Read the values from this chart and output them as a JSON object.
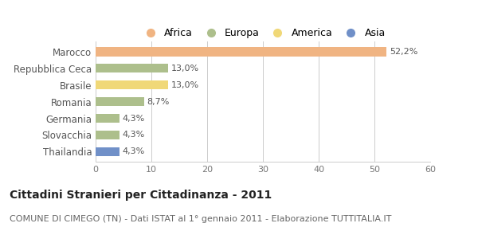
{
  "categories": [
    "Marocco",
    "Repubblica Ceca",
    "Brasile",
    "Romania",
    "Germania",
    "Slovacchia",
    "Thailandia"
  ],
  "values": [
    52.2,
    13.0,
    13.0,
    8.7,
    4.3,
    4.3,
    4.3
  ],
  "labels": [
    "52,2%",
    "13,0%",
    "13,0%",
    "8,7%",
    "4,3%",
    "4,3%",
    "4,3%"
  ],
  "colors": [
    "#F0B482",
    "#ADBF8C",
    "#F0D878",
    "#ADBF8C",
    "#ADBF8C",
    "#ADBF8C",
    "#7090C8"
  ],
  "legend": [
    {
      "label": "Africa",
      "color": "#F0B482"
    },
    {
      "label": "Europa",
      "color": "#ADBF8C"
    },
    {
      "label": "America",
      "color": "#F0D878"
    },
    {
      "label": "Asia",
      "color": "#7090C8"
    }
  ],
  "xlim": [
    0,
    60
  ],
  "xticks": [
    0,
    10,
    20,
    30,
    40,
    50,
    60
  ],
  "title": "Cittadini Stranieri per Cittadinanza - 2011",
  "subtitle": "COMUNE DI CIMEGO (TN) - Dati ISTAT al 1° gennaio 2011 - Elaborazione TUTTITALIA.IT",
  "background_color": "#ffffff",
  "grid_color": "#cccccc",
  "bar_height": 0.55,
  "label_fontsize": 8,
  "ytick_fontsize": 8.5,
  "xtick_fontsize": 8,
  "title_fontsize": 10,
  "subtitle_fontsize": 8
}
